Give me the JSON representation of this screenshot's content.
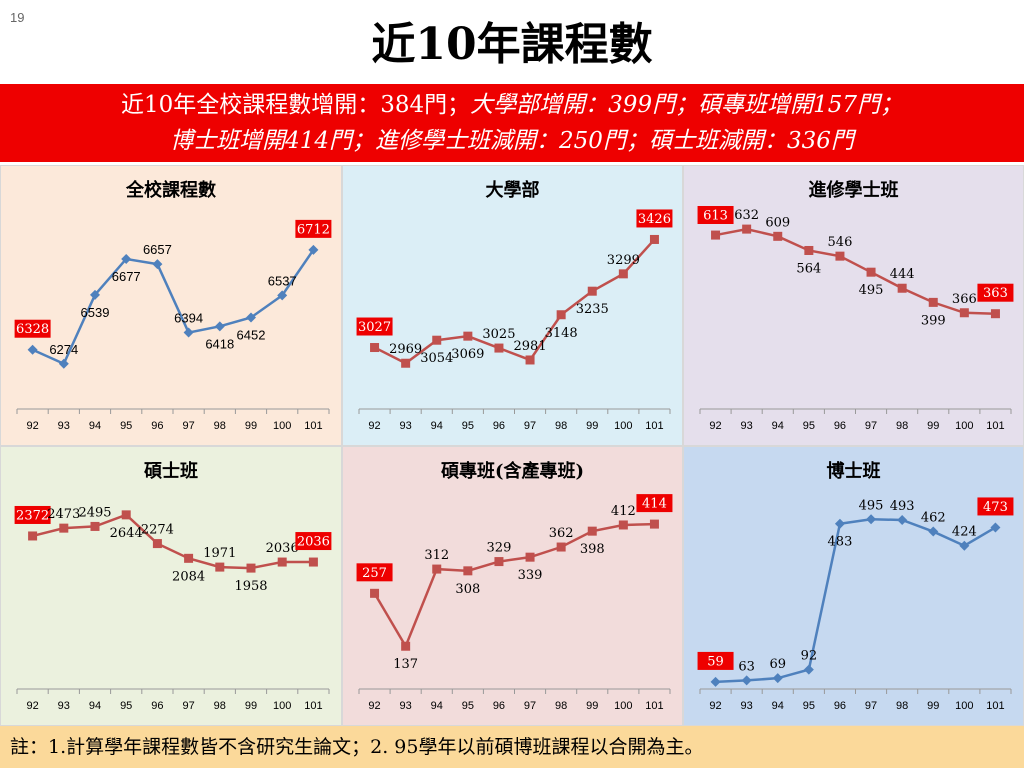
{
  "slide_number": "19",
  "title": "近10年課程數",
  "banner": {
    "line1_a": "近10年全校課程數增開：384門；",
    "line1_b": "大學部增開：399門；碩專班增開157門；",
    "line2": "博士班增開414門；進修學士班減開：250門；碩士班減開：336門"
  },
  "footnote": "註：1.計算學年課程數皆不含研究生論文；2. 95學年以前碩博班課程以合開為主。",
  "colors": {
    "blue_series": "#4f81bd",
    "red_series": "#c0504d",
    "label_box": "#ee0000",
    "panel_peach": "#fce9da",
    "panel_lightblue": "#dbeef6",
    "panel_lavender": "#e5dfec",
    "panel_sage": "#ebf1de",
    "panel_pink": "#f2dcdb",
    "panel_blue": "#c6d9f0"
  },
  "chart_data": [
    {
      "type": "line",
      "title": "全校課程數",
      "categories": [
        "92",
        "93",
        "94",
        "95",
        "96",
        "97",
        "98",
        "99",
        "100",
        "101"
      ],
      "values": [
        6328,
        6274,
        6539,
        6677,
        6657,
        6394,
        6418,
        6452,
        6537,
        6712
      ],
      "ylim": [
        6100,
        6850
      ],
      "boxed_labels": [
        0,
        9
      ],
      "marker": "diamond",
      "color": "#4f81bd",
      "background": "#fce9da",
      "label_font": "sans"
    },
    {
      "type": "line",
      "title": "大學部",
      "categories": [
        "92",
        "93",
        "94",
        "95",
        "96",
        "97",
        "98",
        "99",
        "100",
        "101"
      ],
      "values": [
        3027,
        2969,
        3054,
        3069,
        3025,
        2981,
        3148,
        3235,
        3299,
        3426
      ],
      "ylim": [
        2800,
        3520
      ],
      "boxed_labels": [
        0,
        9
      ],
      "marker": "square",
      "color": "#c0504d",
      "background": "#dbeef6",
      "label_font": "serif"
    },
    {
      "type": "line",
      "title": "進修學士班",
      "categories": [
        "92",
        "93",
        "94",
        "95",
        "96",
        "97",
        "98",
        "99",
        "100",
        "101"
      ],
      "values": [
        613,
        632,
        609,
        564,
        546,
        495,
        444,
        399,
        366,
        363
      ],
      "ylim": [
        60,
        680
      ],
      "boxed_labels": [
        0,
        9
      ],
      "marker": "square",
      "color": "#c0504d",
      "background": "#e5dfec",
      "label_font": "serif"
    },
    {
      "type": "line",
      "title": "碩士班",
      "categories": [
        "92",
        "93",
        "94",
        "95",
        "96",
        "97",
        "98",
        "99",
        "100",
        "101"
      ],
      "values": [
        2372,
        2473,
        2495,
        2644,
        2274,
        2084,
        1971,
        1958,
        2036,
        2036
      ],
      "ylim": [
        400,
        2900
      ],
      "boxed_labels": [
        0,
        9
      ],
      "marker": "square",
      "color": "#c0504d",
      "background": "#ebf1de",
      "label_font": "serif"
    },
    {
      "type": "line",
      "title": "碩專班(含產專班)",
      "categories": [
        "92",
        "93",
        "94",
        "95",
        "96",
        "97",
        "98",
        "99",
        "100",
        "101"
      ],
      "values": [
        257,
        137,
        312,
        308,
        329,
        339,
        362,
        398,
        412,
        414
      ],
      "ylim": [
        40,
        480
      ],
      "boxed_labels": [
        0,
        9
      ],
      "marker": "square",
      "color": "#c0504d",
      "background": "#f2dcdb",
      "label_font": "serif"
    },
    {
      "type": "line",
      "title": "博士班",
      "categories": [
        "92",
        "93",
        "94",
        "95",
        "96",
        "97",
        "98",
        "99",
        "100",
        "101"
      ],
      "values": [
        59,
        63,
        69,
        92,
        483,
        495,
        493,
        462,
        424,
        473
      ],
      "ylim": [
        40,
        560
      ],
      "boxed_labels": [
        0,
        9
      ],
      "marker": "diamond",
      "color": "#4f81bd",
      "background": "#c6d9f0",
      "label_font": "serif"
    }
  ]
}
